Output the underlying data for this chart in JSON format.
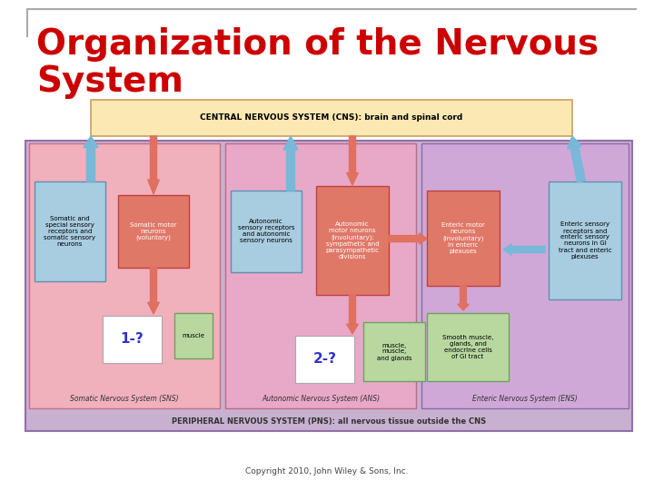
{
  "title": "Organization of the Nervous\nSystem",
  "title_color": "#cc0000",
  "title_fontsize": 36,
  "bg_color": "#ffffff",
  "copyright": "Copyright 2010, John Wiley & Sons, Inc.",
  "cns_text": "CENTRAL NERVOUS SYSTEM (CNS): brain and spinal cord",
  "cns_bg": "#fce8b2",
  "cns_border": "#c8a060",
  "pns_text": "PERIPHERAL NERVOUS SYSTEM (PNS): all nervous tissue outside the CNS",
  "pns_bg": "#c8b0d0",
  "pns_border": "#9070a8",
  "sns_bg": "#f0b0bc",
  "sns_border": "#c87080",
  "ans_bg": "#e8a8c8",
  "ans_border": "#c06888",
  "ens_bg": "#d0a8d8",
  "ens_border": "#9068a8",
  "sns_label": "Somatic Nervous System (SNS)",
  "ans_label": "Autonomic Nervous System (ANS)",
  "ens_label": "Enteric Nervous System (ENS)",
  "blue_box_bg": "#a8cce0",
  "blue_box_border": "#6090b0",
  "red_box_bg": "#e07868",
  "red_box_border": "#c04040",
  "green_box_bg": "#b8d8a0",
  "green_box_border": "#70a060",
  "arrow_red": "#e07060",
  "arrow_blue": "#78b8d8"
}
